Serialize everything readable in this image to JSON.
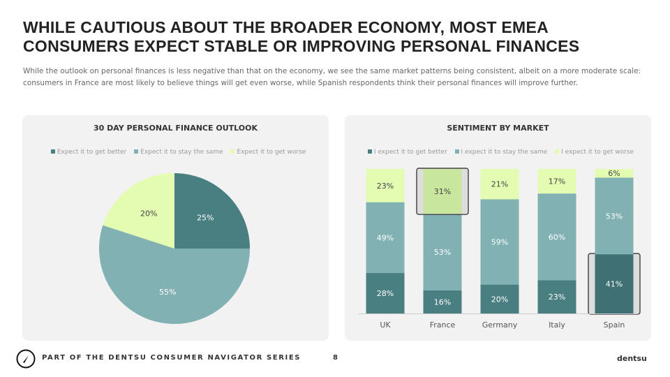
{
  "title": "WHILE CAUTIOUS ABOUT THE BROADER ECONOMY, MOST EMEA CONSUMERS EXPECT STABLE OR IMPROVING PERSONAL FINANCES",
  "subtitle": "While the outlook on personal finances is less negative than that on the economy, we see the same market patterns being consistent, albeit on a more moderate scale: consumers in France are most likely to believe things will get even worse, while Spanish respondents think their personal finances will improve further.",
  "colors": {
    "better": "#4a7f82",
    "same": "#82b1b3",
    "worse": "#e3fcb2",
    "worse_hl": "#c8e69c",
    "better_hl": "#3f7174"
  },
  "chart_data": [
    {
      "type": "pie",
      "title": "30 DAY PERSONAL FINANCE OUTLOOK",
      "legend": [
        "Expect it to get better",
        "Expect it to stay the same",
        "Expect it to get worse"
      ],
      "values": [
        25,
        55,
        20
      ],
      "labels": [
        "25%",
        "55%",
        "20%"
      ]
    },
    {
      "type": "bar",
      "stacked": true,
      "title": "SENTIMENT BY MARKET",
      "legend": [
        "I expect it to get better",
        "I expect it to stay the same",
        "I expect it to get worse"
      ],
      "categories": [
        "UK",
        "France",
        "Germany",
        "Italy",
        "Spain"
      ],
      "series": [
        {
          "name": "I expect it to get better",
          "values": [
            28,
            16,
            20,
            23,
            41
          ]
        },
        {
          "name": "I expect it to stay the same",
          "values": [
            49,
            53,
            59,
            60,
            53
          ]
        },
        {
          "name": "I expect it to get worse",
          "values": [
            23,
            31,
            21,
            17,
            6
          ]
        }
      ],
      "highlighted": [
        {
          "category": "France",
          "series": "I expect it to get worse"
        },
        {
          "category": "Spain",
          "series": "I expect it to get better"
        }
      ],
      "ylim": [
        0,
        100
      ]
    }
  ],
  "footer": {
    "series": "PART OF THE DENTSU CONSUMER NAVIGATOR SERIES",
    "page": "8",
    "brand": "dentsu"
  }
}
